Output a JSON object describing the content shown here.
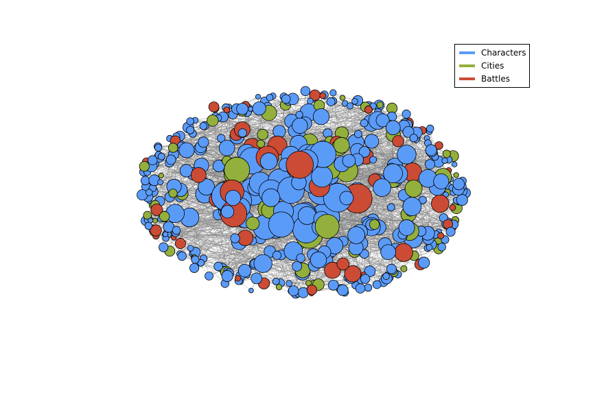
{
  "legend": {
    "items": [
      {
        "label": "Characters",
        "color": "#5b9bf8"
      },
      {
        "label": "Cities",
        "color": "#93b03c"
      },
      {
        "label": "Battles",
        "color": "#cc4b35"
      }
    ],
    "placement": "top-right"
  },
  "colors": {
    "edge": "#808080",
    "node_outline": "#000000",
    "background": "#ffffff"
  },
  "network": {
    "layout": "force-directed",
    "node_size_encodes": "degree"
  }
}
